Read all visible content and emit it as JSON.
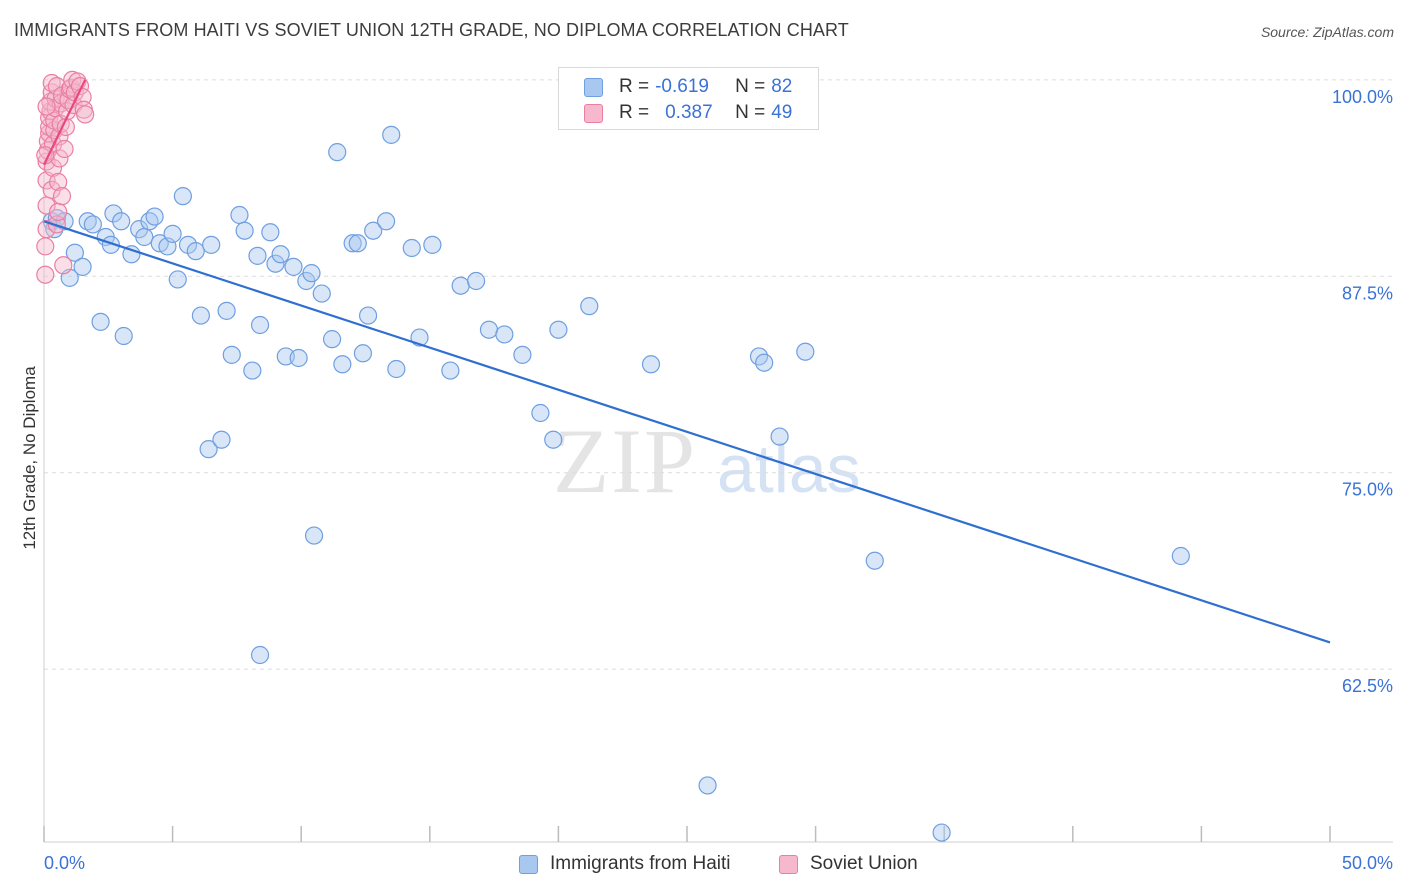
{
  "title": "IMMIGRANTS FROM HAITI VS SOVIET UNION 12TH GRADE, NO DIPLOMA CORRELATION CHART",
  "source": "Source: ZipAtlas.com",
  "watermark": {
    "zip": "ZIP",
    "atlas": "atlas"
  },
  "legend_box": {
    "rows": [
      {
        "r_label": "R = ",
        "r_value": "-0.619",
        "n_label": "N = ",
        "n_value": "82",
        "color": "#a9c8f0"
      },
      {
        "r_label": "R = ",
        "r_value": "0.387",
        "n_label": "N = ",
        "n_value": "49",
        "color": "#f5b8cc"
      }
    ]
  },
  "legend_bottom": [
    {
      "label": "Immigrants from Haiti",
      "color": "#a9c8f0"
    },
    {
      "label": "Soviet Union",
      "color": "#f5b8cc"
    }
  ],
  "chart_data": {
    "type": "scatter",
    "title": "IMMIGRANTS FROM HAITI VS SOVIET UNION 12TH GRADE, NO DIPLOMA CORRELATION CHART",
    "xlabel": "",
    "ylabel": "12th Grade, No Diploma",
    "xlim": [
      0,
      50
    ],
    "ylim": [
      51.5,
      100.5
    ],
    "x_tick_labels": [
      {
        "value": 0,
        "label": "0.0%"
      },
      {
        "value": 50,
        "label": "50.0%"
      }
    ],
    "y_ticks": [
      {
        "value": 100,
        "label": "100.0%"
      },
      {
        "value": 87.5,
        "label": "87.5%"
      },
      {
        "value": 75,
        "label": "75.0%"
      },
      {
        "value": 62.5,
        "label": "62.5%"
      }
    ],
    "grid": true,
    "series": [
      {
        "name": "Immigrants from Haiti",
        "color": "#a9c8f0",
        "edge": "#6f9fe0",
        "trend_color": "#2f6fd0",
        "trend": {
          "x0": 0,
          "y0": 91.0,
          "x1": 50,
          "y1": 64.2
        },
        "points": [
          [
            0.3,
            91.0
          ],
          [
            0.4,
            90.5
          ],
          [
            0.5,
            91.2
          ],
          [
            0.8,
            91.0
          ],
          [
            1.0,
            87.4
          ],
          [
            1.2,
            89.0
          ],
          [
            1.5,
            88.1
          ],
          [
            1.7,
            91.0
          ],
          [
            1.9,
            90.8
          ],
          [
            2.2,
            84.6
          ],
          [
            2.4,
            90.0
          ],
          [
            2.6,
            89.5
          ],
          [
            2.7,
            91.5
          ],
          [
            3.0,
            91.0
          ],
          [
            3.1,
            83.7
          ],
          [
            3.4,
            88.9
          ],
          [
            3.7,
            90.5
          ],
          [
            3.9,
            90.0
          ],
          [
            4.1,
            91.0
          ],
          [
            4.3,
            91.3
          ],
          [
            4.5,
            89.6
          ],
          [
            4.8,
            89.4
          ],
          [
            5.0,
            90.2
          ],
          [
            5.2,
            87.3
          ],
          [
            5.4,
            92.6
          ],
          [
            5.6,
            89.5
          ],
          [
            5.9,
            89.1
          ],
          [
            6.1,
            85.0
          ],
          [
            6.4,
            76.5
          ],
          [
            6.5,
            89.5
          ],
          [
            6.9,
            77.1
          ],
          [
            7.1,
            85.3
          ],
          [
            7.3,
            82.5
          ],
          [
            7.6,
            91.4
          ],
          [
            7.8,
            90.4
          ],
          [
            8.1,
            81.5
          ],
          [
            8.3,
            88.8
          ],
          [
            8.4,
            84.4
          ],
          [
            8.8,
            90.3
          ],
          [
            9.0,
            88.3
          ],
          [
            9.2,
            88.9
          ],
          [
            9.4,
            82.4
          ],
          [
            9.7,
            88.1
          ],
          [
            9.9,
            82.3
          ],
          [
            10.2,
            87.2
          ],
          [
            10.4,
            87.7
          ],
          [
            10.5,
            71.0
          ],
          [
            10.8,
            86.4
          ],
          [
            11.2,
            83.5
          ],
          [
            11.4,
            95.4
          ],
          [
            11.6,
            81.9
          ],
          [
            12.0,
            89.6
          ],
          [
            12.2,
            89.6
          ],
          [
            12.4,
            82.6
          ],
          [
            12.6,
            85.0
          ],
          [
            12.8,
            90.4
          ],
          [
            13.3,
            91.0
          ],
          [
            13.5,
            96.5
          ],
          [
            13.7,
            81.6
          ],
          [
            14.3,
            89.3
          ],
          [
            14.6,
            83.6
          ],
          [
            15.1,
            89.5
          ],
          [
            15.8,
            81.5
          ],
          [
            16.2,
            86.9
          ],
          [
            16.8,
            87.2
          ],
          [
            17.3,
            84.1
          ],
          [
            17.9,
            83.8
          ],
          [
            18.6,
            82.5
          ],
          [
            19.3,
            78.8
          ],
          [
            19.8,
            77.1
          ],
          [
            20.0,
            84.1
          ],
          [
            21.2,
            85.6
          ],
          [
            23.6,
            81.9
          ],
          [
            25.8,
            55.1
          ],
          [
            27.8,
            82.4
          ],
          [
            28.0,
            82.0
          ],
          [
            28.6,
            77.3
          ],
          [
            29.6,
            82.7
          ],
          [
            32.3,
            69.4
          ],
          [
            34.9,
            52.1
          ],
          [
            44.2,
            69.7
          ],
          [
            8.4,
            63.4
          ]
        ]
      },
      {
        "name": "Soviet Union",
        "color": "#f5b8cc",
        "edge": "#ea7fa2",
        "trend_color": "#e8487e",
        "trend": {
          "x0": 0,
          "y0": 94.6,
          "x1": 1.6,
          "y1": 100.0
        },
        "points": [
          [
            0.05,
            87.6
          ],
          [
            0.05,
            89.4
          ],
          [
            0.1,
            90.5
          ],
          [
            0.1,
            92.0
          ],
          [
            0.1,
            93.6
          ],
          [
            0.1,
            94.8
          ],
          [
            0.15,
            95.5
          ],
          [
            0.15,
            96.1
          ],
          [
            0.2,
            96.6
          ],
          [
            0.2,
            97.0
          ],
          [
            0.2,
            97.6
          ],
          [
            0.25,
            98.0
          ],
          [
            0.25,
            98.6
          ],
          [
            0.3,
            99.2
          ],
          [
            0.3,
            99.8
          ],
          [
            0.3,
            93.0
          ],
          [
            0.35,
            94.4
          ],
          [
            0.35,
            95.9
          ],
          [
            0.4,
            96.8
          ],
          [
            0.4,
            97.4
          ],
          [
            0.45,
            98.2
          ],
          [
            0.45,
            98.8
          ],
          [
            0.5,
            99.6
          ],
          [
            0.5,
            90.8
          ],
          [
            0.55,
            91.6
          ],
          [
            0.55,
            93.5
          ],
          [
            0.6,
            95.0
          ],
          [
            0.6,
            96.4
          ],
          [
            0.65,
            97.2
          ],
          [
            0.65,
            98.5
          ],
          [
            0.7,
            99.0
          ],
          [
            0.7,
            92.6
          ],
          [
            0.75,
            88.2
          ],
          [
            0.8,
            95.6
          ],
          [
            0.85,
            97.0
          ],
          [
            0.9,
            98.0
          ],
          [
            0.95,
            98.7
          ],
          [
            1.0,
            99.4
          ],
          [
            1.05,
            99.5
          ],
          [
            1.1,
            100.0
          ],
          [
            1.15,
            98.4
          ],
          [
            1.2,
            99.2
          ],
          [
            1.3,
            99.9
          ],
          [
            1.4,
            99.6
          ],
          [
            1.5,
            98.9
          ],
          [
            1.55,
            98.1
          ],
          [
            1.6,
            97.8
          ],
          [
            0.05,
            95.2
          ],
          [
            0.1,
            98.3
          ]
        ]
      }
    ]
  }
}
